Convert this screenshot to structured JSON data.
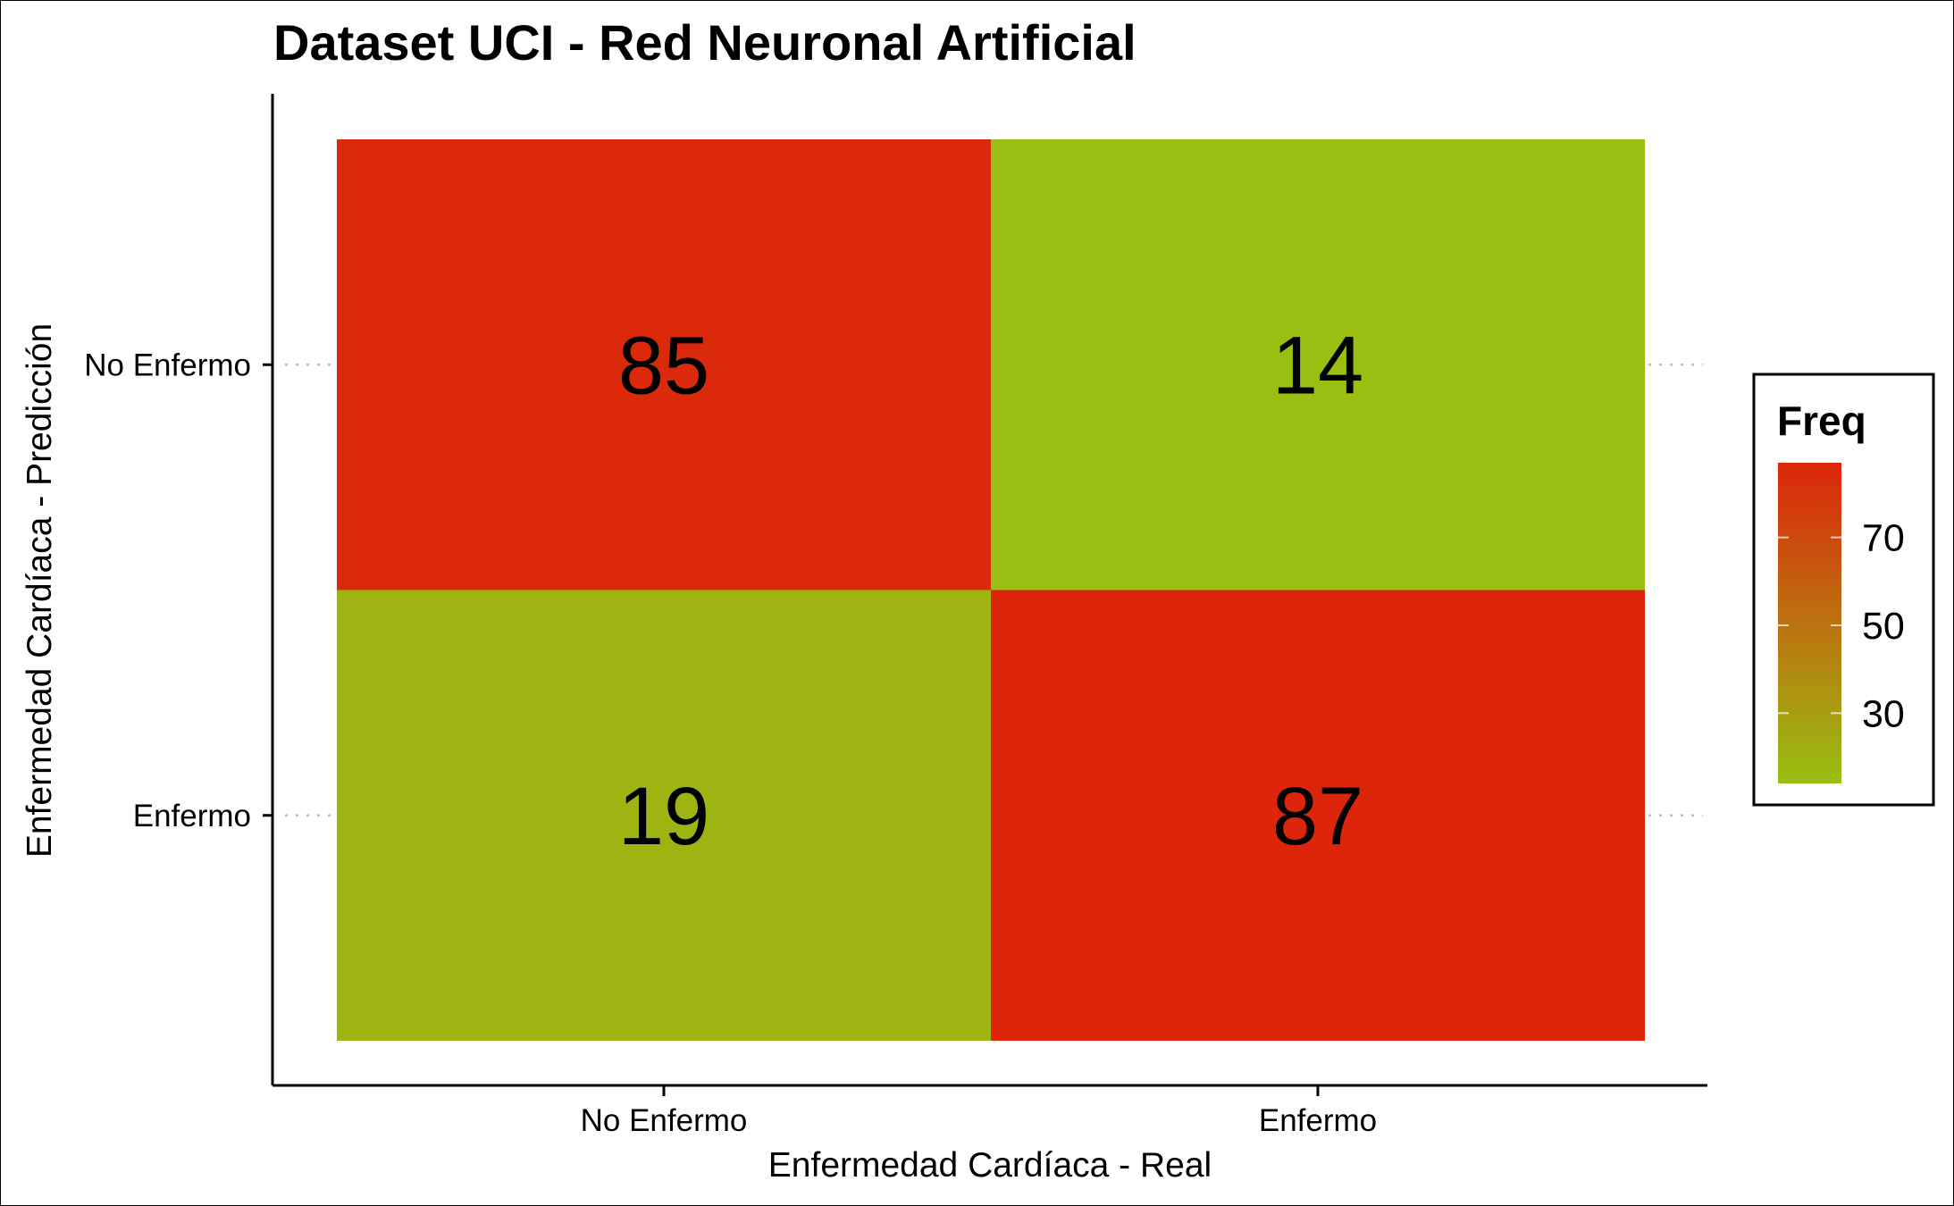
{
  "chart_data": {
    "type": "heatmap",
    "title": "Dataset UCI - Red Neuronal Artificial",
    "xlabel": "Enfermedad Cardíaca - Real",
    "ylabel": "Enfermedad Cardíaca - Predicción",
    "x_categories": [
      "No Enfermo",
      "Enfermo"
    ],
    "y_categories": [
      "No Enfermo",
      "Enfermo"
    ],
    "cells": [
      {
        "x": "No Enfermo",
        "y": "No Enfermo",
        "value": 85
      },
      {
        "x": "Enfermo",
        "y": "No Enfermo",
        "value": 14
      },
      {
        "x": "No Enfermo",
        "y": "Enfermo",
        "value": 19
      },
      {
        "x": "Enfermo",
        "y": "Enfermo",
        "value": 87
      }
    ],
    "legend": {
      "title": "Freq",
      "placement": "right",
      "ticks": [
        30,
        50,
        70
      ],
      "range": [
        14,
        87
      ],
      "low_color": "#99bf12",
      "high_color": "#dc250b"
    },
    "grid": false
  }
}
